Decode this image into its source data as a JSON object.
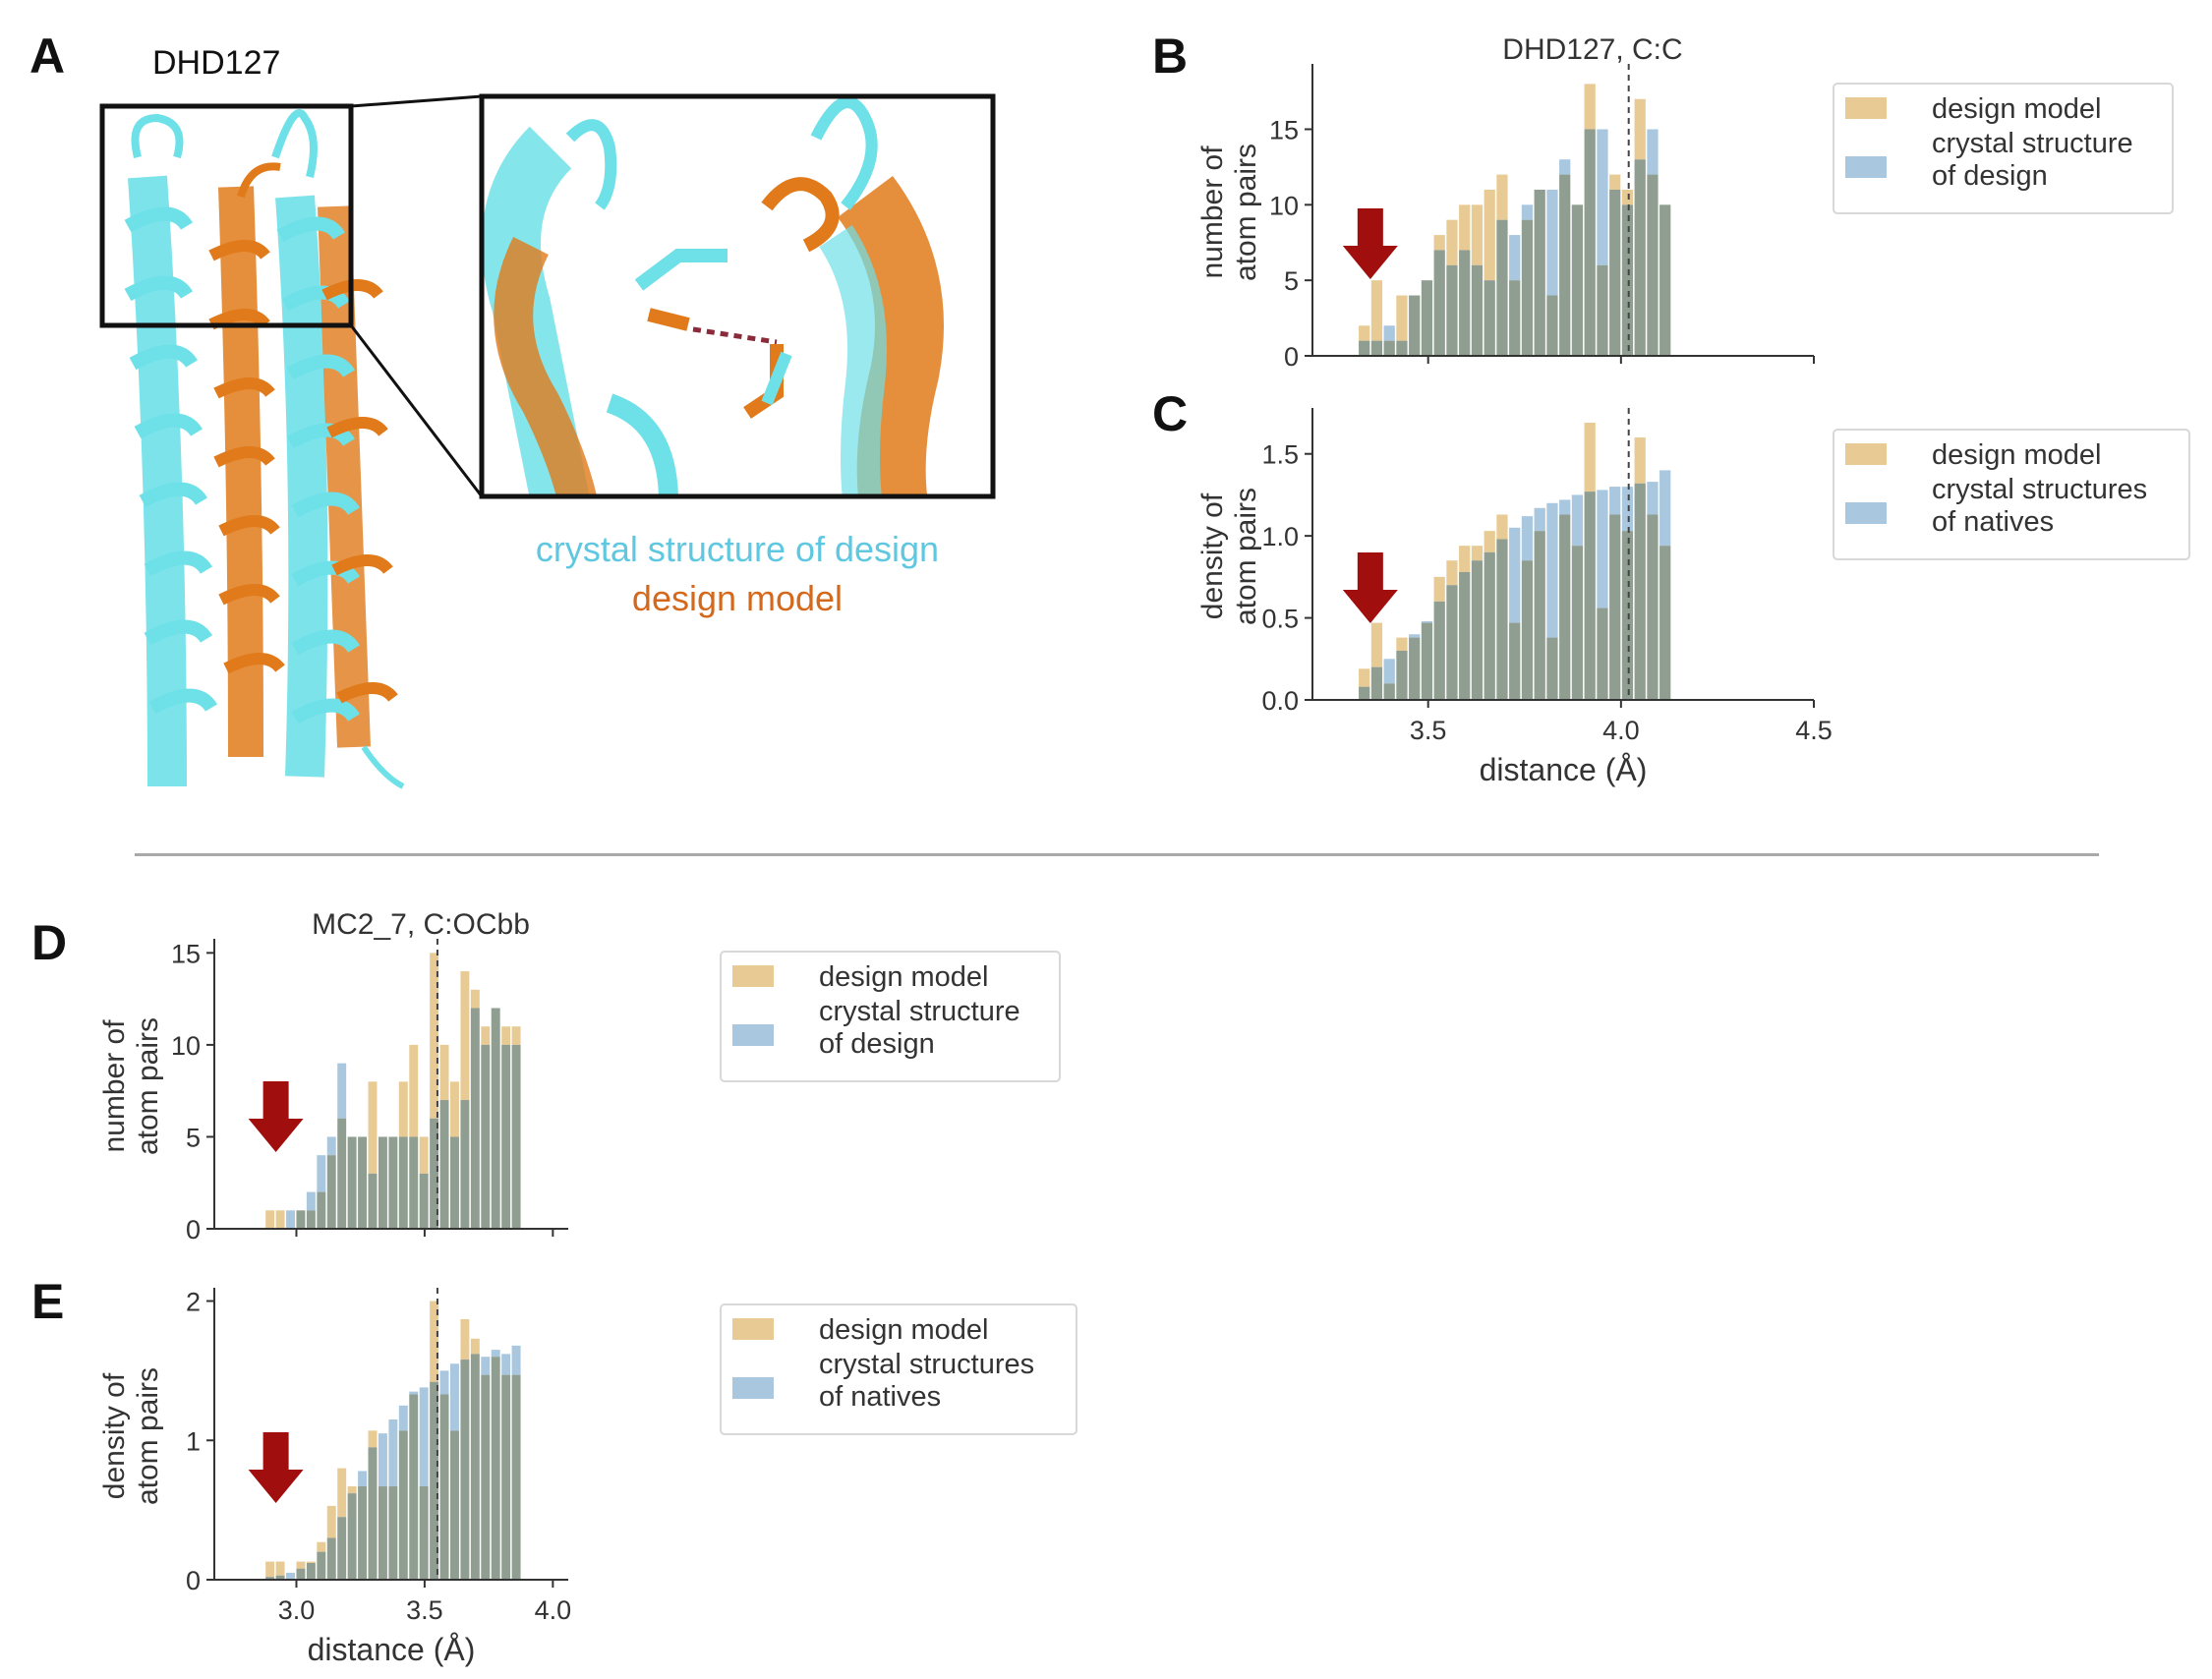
{
  "panel_a": {
    "letter": "A",
    "title": "DHD127",
    "caption_line1": "crystal structure of design",
    "caption_line2": "design model",
    "caption_color1": "#5fc8e0",
    "caption_color2": "#d4691e",
    "protein_colors": {
      "crystal": "#6ee0e8",
      "model": "#e07a1a"
    }
  },
  "panel_letters": {
    "b": "B",
    "c": "C",
    "d": "D",
    "e": "E"
  },
  "colors": {
    "model_bar": "#e8cb94",
    "crystal_bar": "#a9c7df",
    "overlap_bar": "#8f9e91",
    "arrow": "#a10e0e"
  },
  "chart_data": [
    {
      "id": "B",
      "type": "bar",
      "title": "DHD127, C:C",
      "xlabel": "",
      "ylabel": [
        "number of",
        "atom pairs"
      ],
      "xlim": [
        3.2,
        4.5
      ],
      "ylim": [
        0,
        19
      ],
      "xticks": [
        3.5,
        4.0,
        4.5
      ],
      "xtick_labels": [],
      "yticks": [
        0,
        5,
        10,
        15
      ],
      "ytick_labels": [
        "0",
        "5",
        "10",
        "15"
      ],
      "vline": 4.02,
      "arrow_x": 3.35,
      "bin_start": 3.32,
      "bin_width": 0.0325,
      "series": [
        {
          "name": "design model",
          "values": [
            2,
            5,
            1,
            4,
            4,
            5,
            8,
            9,
            10,
            10,
            11,
            12,
            5,
            9,
            11,
            4,
            12,
            10,
            18,
            6,
            12,
            11,
            17,
            12,
            10
          ]
        },
        {
          "name": "crystal structure of design",
          "values": [
            1,
            1,
            2,
            1,
            4,
            5,
            7,
            6,
            7,
            6,
            5,
            9,
            8,
            10,
            11,
            11,
            13,
            10,
            15,
            15,
            11,
            10,
            13,
            15,
            10
          ]
        }
      ],
      "legend": {
        "placement": "right",
        "entries": [
          [
            "design model"
          ],
          [
            "crystal structure",
            "of design"
          ]
        ]
      }
    },
    {
      "id": "C",
      "type": "bar",
      "title": "",
      "xlabel": "distance (Å)",
      "ylabel": [
        "density of",
        "atom pairs"
      ],
      "xlim": [
        3.2,
        4.5
      ],
      "ylim": [
        0,
        1.75
      ],
      "xticks": [
        3.5,
        4.0,
        4.5
      ],
      "xtick_labels": [
        "3.5",
        "4.0",
        "4.5"
      ],
      "yticks": [
        0,
        0.5,
        1.0,
        1.5
      ],
      "ytick_labels": [
        "0.0",
        "0.5",
        "1.0",
        "1.5"
      ],
      "vline": 4.02,
      "arrow_x": 3.35,
      "bin_start": 3.32,
      "bin_width": 0.0325,
      "series": [
        {
          "name": "design model",
          "values": [
            0.19,
            0.47,
            0.1,
            0.38,
            0.38,
            0.47,
            0.75,
            0.85,
            0.94,
            0.94,
            1.03,
            1.13,
            0.47,
            0.85,
            1.03,
            0.38,
            1.13,
            0.94,
            1.69,
            0.56,
            1.13,
            1.03,
            1.6,
            1.13,
            0.94
          ]
        },
        {
          "name": "crystal structures of natives",
          "values": [
            0.08,
            0.2,
            0.25,
            0.3,
            0.4,
            0.48,
            0.6,
            0.7,
            0.78,
            0.85,
            0.9,
            0.98,
            1.05,
            1.12,
            1.17,
            1.2,
            1.22,
            1.25,
            1.27,
            1.28,
            1.3,
            1.3,
            1.32,
            1.33,
            1.4
          ]
        }
      ],
      "legend": {
        "placement": "right",
        "entries": [
          [
            "design model"
          ],
          [
            "crystal structures",
            " of natives"
          ]
        ]
      }
    },
    {
      "id": "D",
      "type": "bar",
      "title": "MC2_7, C:OCbb",
      "xlabel": "",
      "ylabel": [
        "number of",
        "atom pairs"
      ],
      "xlim": [
        2.68,
        4.06
      ],
      "ylim": [
        0,
        15.5
      ],
      "xticks": [
        3.0,
        3.5,
        4.0
      ],
      "xtick_labels": [],
      "yticks": [
        0,
        5,
        10,
        15
      ],
      "ytick_labels": [
        "0",
        "5",
        "10",
        "15"
      ],
      "vline": 3.55,
      "arrow_x": 2.92,
      "bin_start": 2.88,
      "bin_width": 0.04,
      "series": [
        {
          "name": "design model",
          "values": [
            1,
            1,
            0,
            1,
            1,
            2,
            4,
            6,
            5,
            5,
            8,
            5,
            5,
            8,
            10,
            5,
            15,
            10,
            8,
            14,
            13,
            11,
            12,
            11,
            11
          ]
        },
        {
          "name": "crystal structure of design",
          "values": [
            0,
            0,
            1,
            1,
            2,
            4,
            5,
            9,
            5,
            5,
            3,
            5,
            5,
            5,
            5,
            3,
            6,
            7,
            5,
            7,
            12,
            10,
            12,
            10,
            10
          ]
        }
      ],
      "legend": {
        "placement": "right",
        "entries": [
          [
            "design model"
          ],
          [
            "crystal structure",
            "of design"
          ]
        ]
      }
    },
    {
      "id": "E",
      "type": "bar",
      "title": "",
      "xlabel": "distance (Å)",
      "ylabel": [
        "density of",
        "atom pairs"
      ],
      "xlim": [
        2.68,
        4.06
      ],
      "ylim": [
        0,
        2.06
      ],
      "xticks": [
        3.0,
        3.5,
        4.0
      ],
      "xtick_labels": [
        "3.0",
        "3.5",
        "4.0"
      ],
      "yticks": [
        0,
        1,
        2
      ],
      "ytick_labels": [
        "0",
        "1",
        "2"
      ],
      "vline": 3.55,
      "arrow_x": 2.92,
      "bin_start": 2.88,
      "bin_width": 0.04,
      "series": [
        {
          "name": "design model",
          "values": [
            0.13,
            0.13,
            0,
            0.13,
            0.13,
            0.27,
            0.53,
            0.8,
            0.67,
            0.67,
            1.07,
            0.67,
            0.67,
            1.07,
            1.33,
            0.67,
            2.0,
            1.33,
            1.07,
            1.87,
            1.73,
            1.47,
            1.6,
            1.47,
            1.47
          ]
        },
        {
          "name": "crystal structures of natives",
          "values": [
            0.02,
            0.03,
            0.05,
            0.08,
            0.12,
            0.2,
            0.3,
            0.45,
            0.62,
            0.78,
            0.95,
            1.05,
            1.15,
            1.25,
            1.35,
            1.38,
            1.42,
            1.5,
            1.55,
            1.58,
            1.62,
            1.6,
            1.65,
            1.62,
            1.68
          ]
        }
      ],
      "legend": {
        "placement": "right",
        "entries": [
          [
            "design model"
          ],
          [
            "crystal structures",
            " of natives"
          ]
        ]
      }
    }
  ]
}
